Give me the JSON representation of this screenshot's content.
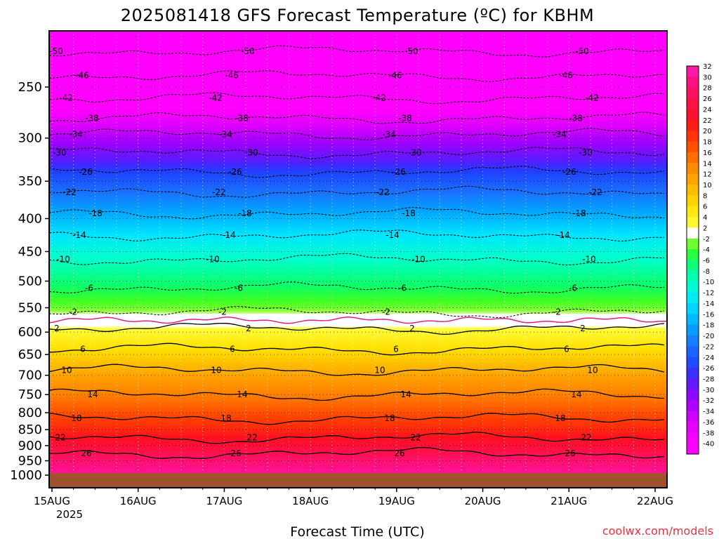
{
  "chart_data": {
    "type": "heatmap",
    "title": "2025081418 GFS Forecast Temperature (ºC) for KBHM",
    "xlabel": "Forecast Time (UTC)",
    "ylabel": "",
    "x_tick_labels": [
      "15AUG",
      "16AUG",
      "17AUG",
      "18AUG",
      "19AUG",
      "20AUG",
      "21AUG",
      "22AUG"
    ],
    "x_tick_sublabel": "2025",
    "y_tick_labels": [
      "250",
      "300",
      "350",
      "400",
      "450",
      "500",
      "550",
      "600",
      "650",
      "700",
      "750",
      "800",
      "850",
      "900",
      "950",
      "1000"
    ],
    "ylim": [
      1050,
      200
    ],
    "colorbar": {
      "ticks": [
        32,
        30,
        28,
        26,
        24,
        22,
        20,
        18,
        16,
        14,
        12,
        10,
        8,
        6,
        4,
        2,
        -2,
        -4,
        -6,
        -8,
        -10,
        -12,
        -14,
        -16,
        -18,
        -20,
        -22,
        -24,
        -26,
        -28,
        -30,
        -32,
        -34,
        -36,
        -38,
        -40
      ]
    },
    "contour_level_labels": {
      "negative": [
        "-50",
        "-46",
        "-42",
        "-38",
        "-34",
        "-30",
        "-26",
        "-22",
        "-18",
        "-14",
        "-10",
        "-6",
        "-2"
      ],
      "positive": [
        "2",
        "6",
        "10",
        "14",
        "18",
        "22",
        "26"
      ]
    },
    "profile": [
      {
        "p": 220,
        "t": -50
      },
      {
        "p": 250,
        "t": -44
      },
      {
        "p": 275,
        "t": -39
      },
      {
        "p": 300,
        "t": -33
      },
      {
        "p": 350,
        "t": -24
      },
      {
        "p": 400,
        "t": -17
      },
      {
        "p": 450,
        "t": -11
      },
      {
        "p": 500,
        "t": -7
      },
      {
        "p": 550,
        "t": -3
      },
      {
        "p": 575,
        "t": 0
      },
      {
        "p": 600,
        "t": 3
      },
      {
        "p": 650,
        "t": 7
      },
      {
        "p": 700,
        "t": 11
      },
      {
        "p": 750,
        "t": 14
      },
      {
        "p": 800,
        "t": 17
      },
      {
        "p": 850,
        "t": 20
      },
      {
        "p": 900,
        "t": 24
      },
      {
        "p": 950,
        "t": 28
      },
      {
        "p": 1000,
        "t": 31
      }
    ],
    "grid": true,
    "legend_placement": "right"
  },
  "credit": "coolwx.com/models"
}
